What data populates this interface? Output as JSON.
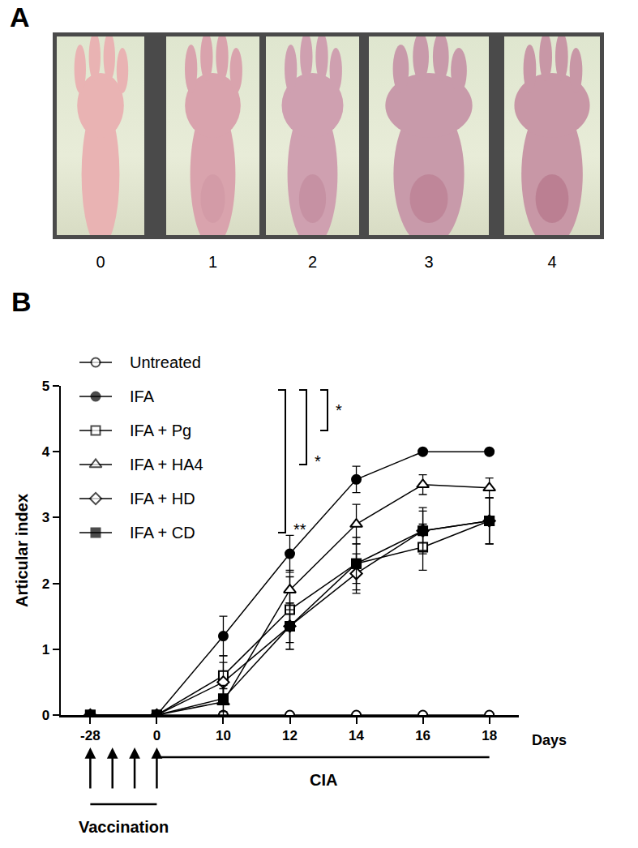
{
  "panel_a": {
    "label": "A",
    "scores": [
      0,
      1,
      2,
      3,
      4
    ]
  },
  "chart_data": {
    "type": "line",
    "label": "B",
    "categories": [
      "-28",
      "0",
      "10",
      "12",
      "14",
      "16",
      "18"
    ],
    "x_label": "Days",
    "y_label": "Articular index",
    "ylim": [
      0,
      5
    ],
    "yticks": [
      0,
      1,
      2,
      3,
      4,
      5
    ],
    "grid": false,
    "series": [
      {
        "name": "Untreated",
        "color": "#000000",
        "marker": "circle-open",
        "line_style": "solid",
        "values": [
          0,
          0,
          0,
          0,
          0,
          0,
          0
        ],
        "error": [
          0,
          0,
          0,
          0,
          0,
          0,
          0
        ]
      },
      {
        "name": "IFA",
        "color": "#000000",
        "marker": "circle",
        "line_style": "solid",
        "values": [
          0,
          0,
          1.2,
          2.45,
          3.58,
          4.0,
          4.0
        ],
        "error": [
          0,
          0,
          0.3,
          0.28,
          0.2,
          0,
          0
        ]
      },
      {
        "name": "IFA + Pg",
        "color": "#000000",
        "marker": "square-open",
        "line_style": "solid",
        "values": [
          0,
          0,
          0.6,
          1.6,
          2.3,
          2.55,
          2.95
        ],
        "error": [
          0,
          0,
          0.3,
          0.5,
          0.4,
          0.35,
          0.35
        ]
      },
      {
        "name": "IFA + HA4",
        "color": "#000000",
        "marker": "triangle-up-open",
        "line_style": "solid",
        "values": [
          0,
          0,
          0.2,
          1.9,
          2.9,
          3.5,
          3.45
        ],
        "error": [
          0,
          0,
          0.2,
          0.3,
          0.3,
          0.15,
          0.15
        ]
      },
      {
        "name": "IFA + HD",
        "color": "#000000",
        "marker": "diamond-open",
        "line_style": "solid",
        "values": [
          0,
          0,
          0.5,
          1.35,
          2.15,
          2.8,
          2.95
        ],
        "error": [
          0,
          0,
          0.3,
          0.35,
          0.3,
          0.35,
          0.35
        ]
      },
      {
        "name": "IFA + CD",
        "color": "#000000",
        "marker": "square",
        "line_style": "solid",
        "values": [
          0,
          0,
          0.25,
          1.35,
          2.3,
          2.8,
          2.95
        ],
        "error": [
          0,
          0,
          0.2,
          0.35,
          0.3,
          0.3,
          0.35
        ]
      }
    ],
    "comparisons": [
      {
        "from": "IFA",
        "to": "IFA + Pg",
        "label": "*"
      },
      {
        "from": "IFA",
        "to": "IFA + HA4",
        "label": "*"
      },
      {
        "from": "IFA",
        "to": "IFA + CD",
        "label": "**"
      }
    ],
    "timeline": [
      {
        "text": "Vaccination",
        "from": "-28",
        "to": "0",
        "arrows": 4
      },
      {
        "text": "CIA",
        "from": "0",
        "to": "18"
      }
    ]
  }
}
